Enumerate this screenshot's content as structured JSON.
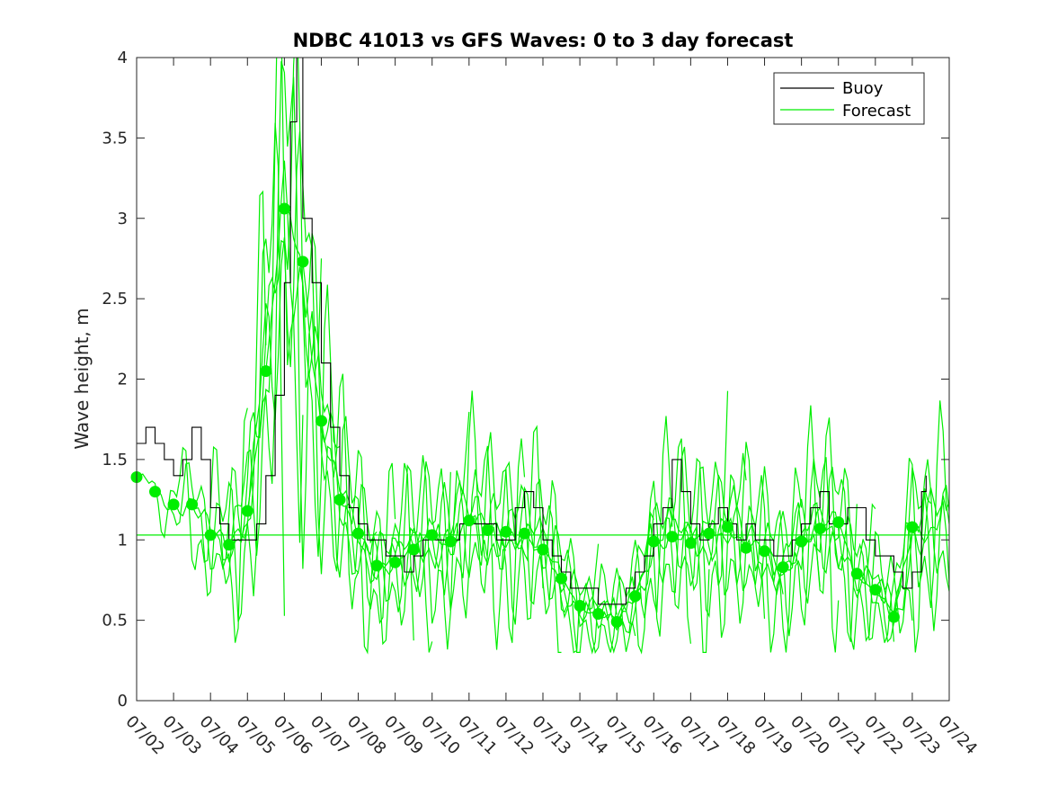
{
  "chart_data": {
    "type": "line",
    "title": "NDBC 41013 vs GFS Waves: 0 to 3 day forecast",
    "xlabel": "",
    "ylabel": "Wave height, m",
    "xlim": [
      "07/02",
      "07/24"
    ],
    "ylim": [
      0,
      4
    ],
    "yticks": [
      "0",
      "0.5",
      "1",
      "1.5",
      "2",
      "2.5",
      "3",
      "3.5",
      "4"
    ],
    "xticks": [
      "07/02",
      "07/03",
      "07/04",
      "07/05",
      "07/06",
      "07/07",
      "07/08",
      "07/09",
      "07/10",
      "07/11",
      "07/12",
      "07/13",
      "07/14",
      "07/15",
      "07/16",
      "07/17",
      "07/18",
      "07/19",
      "07/20",
      "07/21",
      "07/22",
      "07/23",
      "07/24"
    ],
    "grid": false,
    "legend": {
      "placement": "top-right",
      "entries": [
        "Buoy",
        "Forecast"
      ]
    },
    "colors": {
      "buoy": "#000000",
      "forecast": "#00ee00",
      "analysis": "#00ee00"
    },
    "reference_line": {
      "y": 1.03
    },
    "series": [
      {
        "name": "Buoy",
        "x": [
          "07/02 00:00",
          "07/02 06:00",
          "07/02 12:00",
          "07/02 18:00",
          "07/03 00:00",
          "07/03 06:00",
          "07/03 12:00",
          "07/03 18:00",
          "07/04 00:00",
          "07/04 06:00",
          "07/04 12:00",
          "07/04 18:00",
          "07/05 00:00",
          "07/05 06:00",
          "07/05 12:00",
          "07/05 18:00",
          "07/06 00:00",
          "07/06 04:00",
          "07/06 08:00",
          "07/06 12:00",
          "07/06 18:00",
          "07/07 00:00",
          "07/07 06:00",
          "07/07 12:00",
          "07/07 18:00",
          "07/08 00:00",
          "07/08 06:00",
          "07/08 12:00",
          "07/08 18:00",
          "07/09 00:00",
          "07/09 06:00",
          "07/09 12:00",
          "07/09 18:00",
          "07/10 00:00",
          "07/10 06:00",
          "07/10 12:00",
          "07/10 18:00",
          "07/11 00:00",
          "07/11 06:00",
          "07/11 12:00",
          "07/11 18:00",
          "07/12 00:00",
          "07/12 06:00",
          "07/12 12:00",
          "07/12 18:00",
          "07/13 00:00",
          "07/13 06:00",
          "07/13 12:00",
          "07/13 18:00",
          "07/14 00:00",
          "07/14 06:00",
          "07/14 12:00",
          "07/14 18:00",
          "07/15 00:00",
          "07/15 06:00",
          "07/15 12:00",
          "07/15 18:00",
          "07/16 00:00",
          "07/16 06:00",
          "07/16 12:00",
          "07/16 18:00",
          "07/17 00:00",
          "07/17 06:00",
          "07/17 12:00",
          "07/17 18:00",
          "07/18 00:00",
          "07/18 06:00",
          "07/18 12:00",
          "07/18 18:00",
          "07/19 00:00",
          "07/19 06:00",
          "07/19 12:00",
          "07/19 18:00",
          "07/20 00:00",
          "07/20 06:00",
          "07/20 12:00",
          "07/20 18:00",
          "07/21 00:00",
          "07/21 06:00",
          "07/21 12:00",
          "07/21 18:00",
          "07/22 00:00",
          "07/22 06:00",
          "07/22 12:00",
          "07/22 18:00",
          "07/23 00:00",
          "07/23 06:00",
          "07/23 09:00"
        ],
        "values": [
          1.6,
          1.7,
          1.6,
          1.5,
          1.4,
          1.5,
          1.7,
          1.5,
          1.2,
          1.1,
          1.0,
          1.0,
          1.0,
          1.1,
          1.4,
          1.9,
          2.6,
          3.6,
          4.0,
          3.0,
          2.6,
          2.1,
          1.7,
          1.4,
          1.2,
          1.1,
          1.0,
          1.0,
          0.9,
          0.9,
          0.8,
          0.9,
          1.0,
          1.0,
          1.0,
          1.0,
          1.1,
          1.1,
          1.1,
          1.1,
          1.0,
          1.0,
          1.2,
          1.3,
          1.2,
          1.0,
          0.9,
          0.8,
          0.7,
          0.7,
          0.7,
          0.6,
          0.6,
          0.6,
          0.7,
          0.8,
          0.9,
          1.1,
          1.2,
          1.5,
          1.3,
          1.1,
          1.0,
          1.1,
          1.2,
          1.1,
          1.0,
          1.1,
          1.0,
          1.0,
          0.9,
          0.9,
          1.0,
          1.1,
          1.2,
          1.3,
          1.1,
          1.1,
          1.2,
          1.2,
          1.0,
          0.9,
          0.9,
          0.8,
          0.7,
          0.8,
          1.3,
          1.4
        ]
      },
      {
        "name": "Forecast",
        "markers": true,
        "x": [
          "07/02 00:00",
          "07/02 12:00",
          "07/03 00:00",
          "07/03 12:00",
          "07/04 00:00",
          "07/04 12:00",
          "07/05 00:00",
          "07/05 12:00",
          "07/06 00:00",
          "07/06 12:00",
          "07/07 00:00",
          "07/07 12:00",
          "07/08 00:00",
          "07/08 12:00",
          "07/09 00:00",
          "07/09 12:00",
          "07/10 00:00",
          "07/10 12:00",
          "07/11 00:00",
          "07/11 12:00",
          "07/12 00:00",
          "07/12 12:00",
          "07/13 00:00",
          "07/13 12:00",
          "07/14 00:00",
          "07/14 12:00",
          "07/15 00:00",
          "07/15 12:00",
          "07/16 00:00",
          "07/16 12:00",
          "07/17 00:00",
          "07/17 12:00",
          "07/18 00:00",
          "07/18 12:00",
          "07/19 00:00",
          "07/19 12:00",
          "07/20 00:00",
          "07/20 12:00",
          "07/21 00:00",
          "07/21 12:00",
          "07/22 00:00",
          "07/22 12:00",
          "07/23 00:00"
        ],
        "values": [
          1.39,
          1.3,
          1.22,
          1.22,
          1.03,
          0.97,
          1.18,
          2.05,
          3.06,
          2.73,
          1.74,
          1.25,
          1.04,
          0.84,
          0.86,
          0.94,
          1.03,
          0.99,
          1.12,
          1.06,
          1.05,
          1.04,
          0.94,
          0.76,
          0.59,
          0.54,
          0.49,
          0.65,
          0.99,
          1.02,
          0.98,
          1.04,
          1.08,
          0.95,
          0.93,
          0.83,
          0.99,
          1.07,
          1.11,
          0.79,
          0.69,
          0.52,
          1.08
        ]
      }
    ]
  }
}
